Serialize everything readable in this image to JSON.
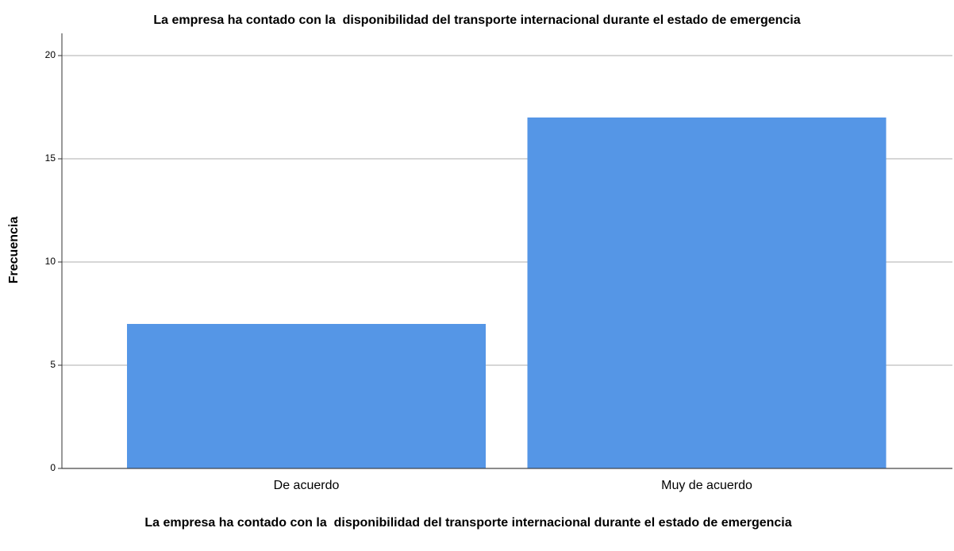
{
  "chart_data": {
    "type": "bar",
    "title": "La empresa ha contado con la  disponibilidad del transporte internacional durante el estado de emergencia",
    "xlabel": "La empresa ha contado con la  disponibilidad del transporte internacional durante el estado de emergencia",
    "ylabel": "Frecuencia",
    "categories": [
      "De acuerdo",
      "Muy de acuerdo"
    ],
    "values": [
      7,
      17
    ],
    "color": "#5596e6",
    "ylim": [
      0,
      21
    ],
    "yticks": [
      0,
      5,
      10,
      15,
      20
    ],
    "grid": true
  }
}
